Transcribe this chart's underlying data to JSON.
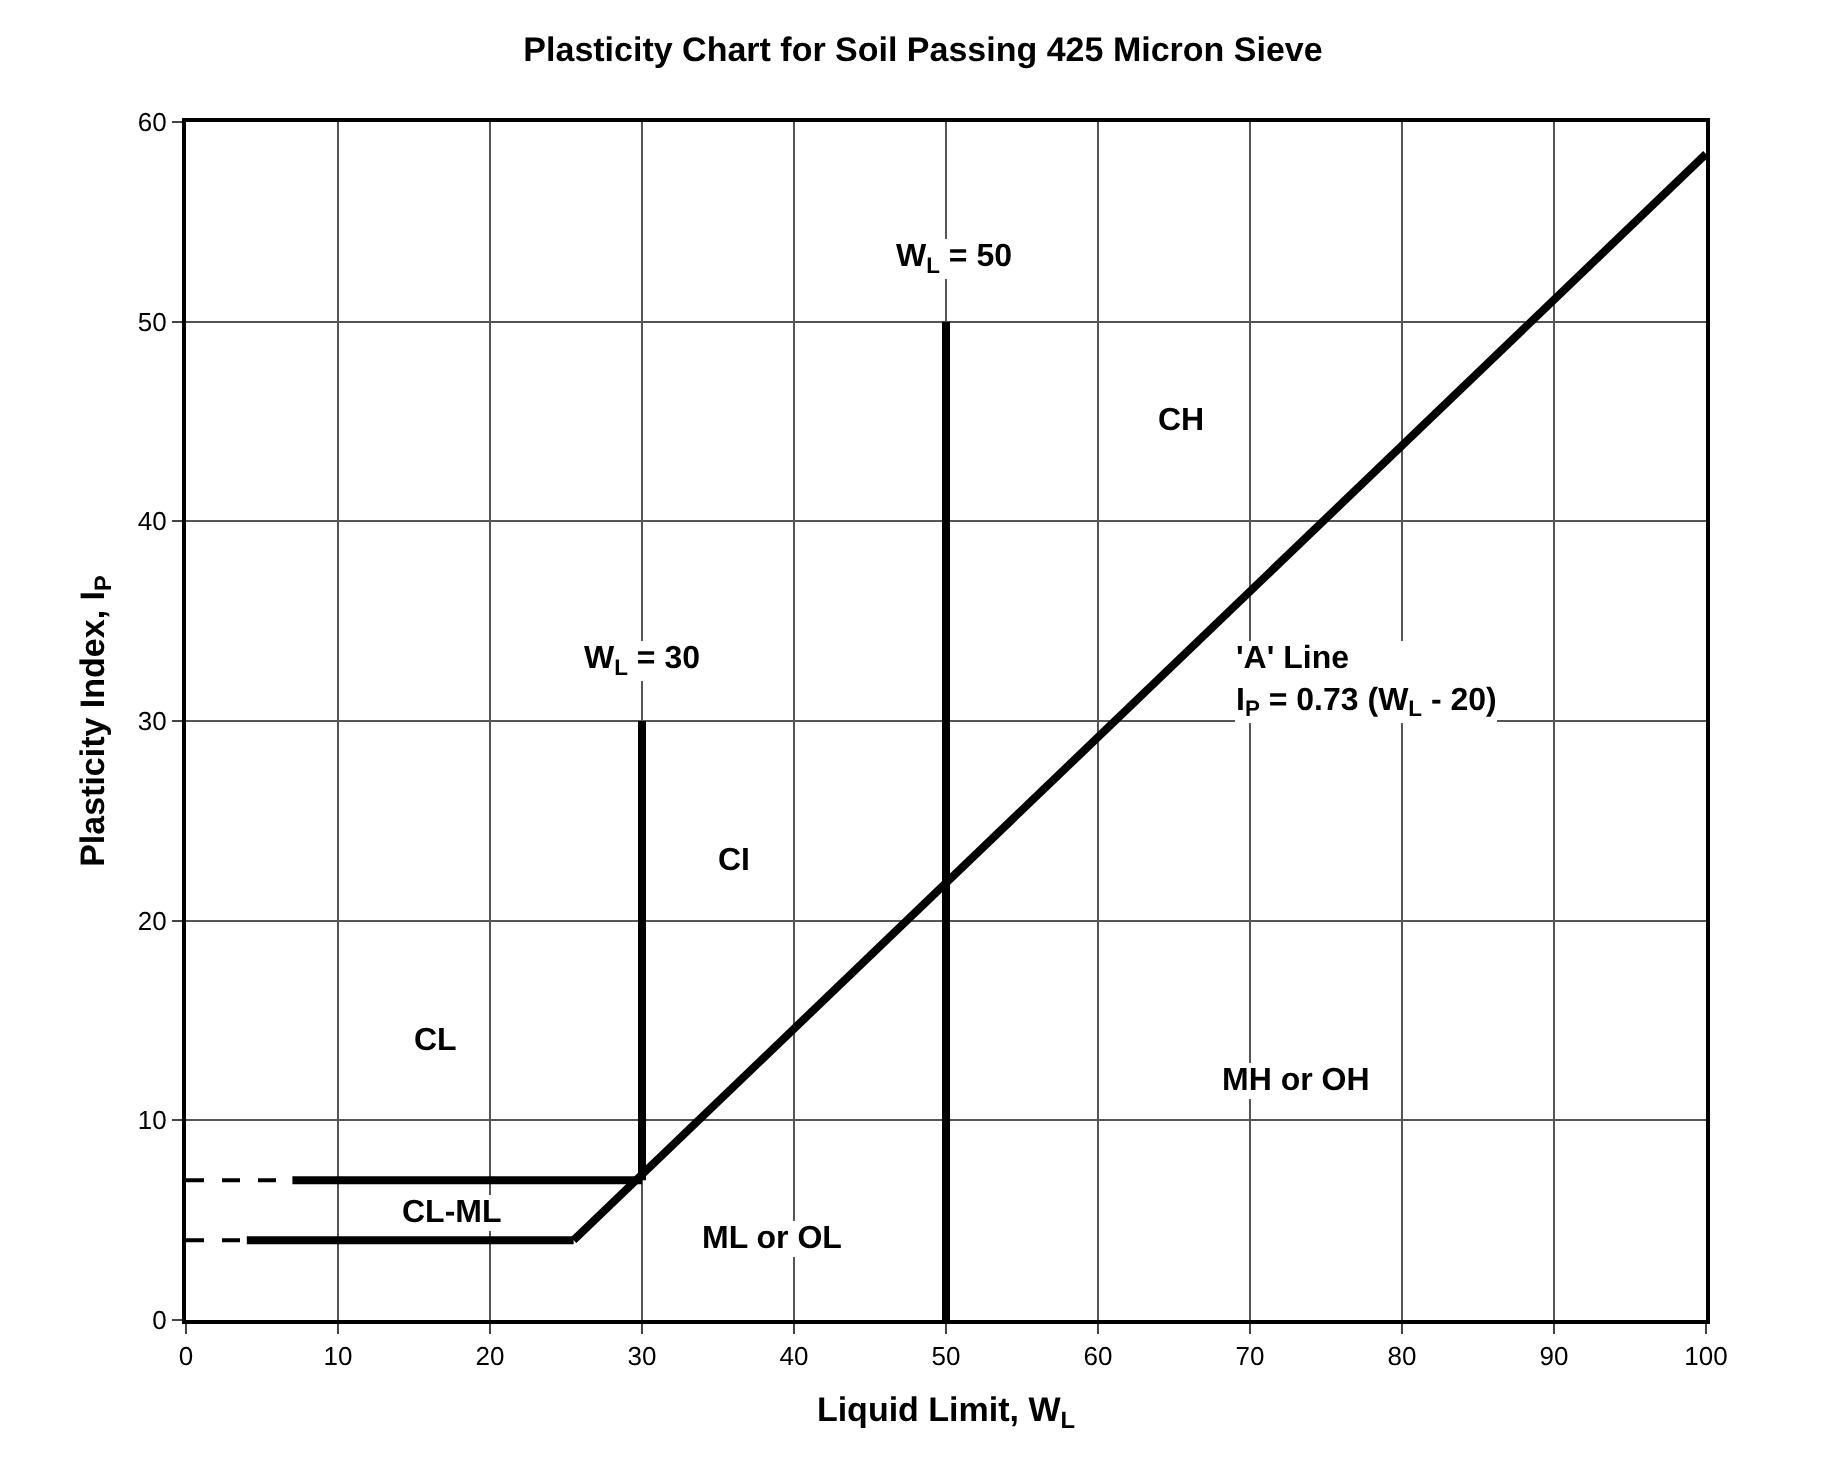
{
  "chart_data": {
    "type": "line",
    "title": "Plasticity Chart for Soil Passing 425 Micron Sieve",
    "xlabel": "Liquid Limit, W$_{L}$",
    "ylabel": "Plasticity Index, I$_{P}$",
    "xlim": [
      0,
      100
    ],
    "xticks": [
      0,
      10,
      20,
      30,
      40,
      50,
      60,
      70,
      80,
      90,
      100
    ],
    "ylim": [
      0,
      60
    ],
    "yticks": [
      0,
      10,
      20,
      30,
      40,
      50,
      60
    ],
    "grid": true,
    "marker": "none",
    "line_style": "solid",
    "series": [
      {
        "color": "#000000",
        "x": [
          25.5,
          100
        ],
        "values": [
          4,
          58.4
        ]
      },
      {
        "color": "#000000",
        "x": [
          30,
          30
        ],
        "values": [
          7,
          30
        ]
      },
      {
        "color": "#000000",
        "x": [
          50,
          50
        ],
        "values": [
          0,
          50
        ]
      },
      {
        "color": "#000000",
        "x": [
          7,
          30
        ],
        "values": [
          7,
          7
        ]
      },
      {
        "color": "#000000",
        "x": [
          4,
          25.5
        ],
        "values": [
          4,
          4
        ]
      },
      {
        "color": "#000000",
        "line_style": "dashed",
        "x": [
          0,
          7
        ],
        "values": [
          7,
          7
        ]
      },
      {
        "color": "#000000",
        "line_style": "dashed",
        "x": [
          0,
          4
        ],
        "values": [
          4,
          4
        ]
      }
    ],
    "annotations": [
      "W$_{L}$ = 50",
      "W$_{L}$ = 30",
      "CH",
      "CI",
      "CL",
      "MH or OH",
      "CL-ML",
      "ML or OL",
      "'A' Line\nI$_{P}$ = 0.73 (W$_{L}$ - 20)"
    ]
  }
}
